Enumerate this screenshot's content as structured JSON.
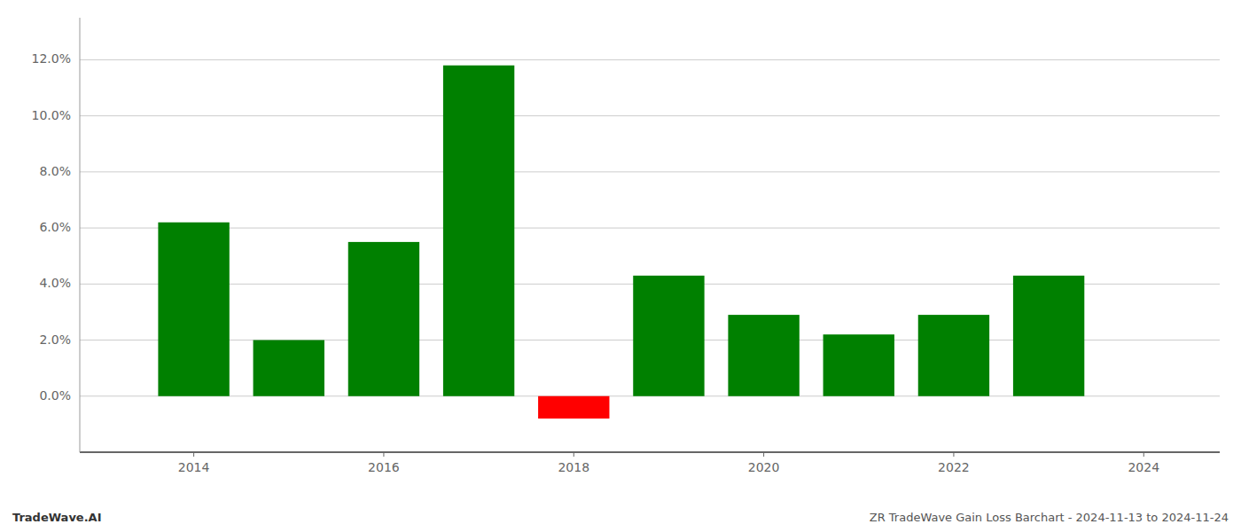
{
  "chart_data": {
    "type": "bar",
    "x": [
      2014,
      2015,
      2016,
      2017,
      2018,
      2019,
      2020,
      2021,
      2022,
      2023
    ],
    "values": [
      0.062,
      0.02,
      0.055,
      0.118,
      -0.008,
      0.043,
      0.029,
      0.022,
      0.029,
      0.043
    ],
    "colors": [
      "#008000",
      "#008000",
      "#008000",
      "#008000",
      "#ff0000",
      "#008000",
      "#008000",
      "#008000",
      "#008000",
      "#008000"
    ],
    "xlim": [
      2012.8,
      2024.8
    ],
    "xticks": [
      2014,
      2016,
      2018,
      2020,
      2022,
      2024
    ],
    "ylim": [
      -0.02,
      0.135
    ],
    "yticks": [
      {
        "value": 0.0,
        "label": "0.0%"
      },
      {
        "value": 0.02,
        "label": "2.0%"
      },
      {
        "value": 0.04,
        "label": "4.0%"
      },
      {
        "value": 0.06,
        "label": "6.0%"
      },
      {
        "value": 0.08,
        "label": "8.0%"
      },
      {
        "value": 0.1,
        "label": "10.0%"
      },
      {
        "value": 0.12,
        "label": "12.0%"
      }
    ],
    "grid": true,
    "annotations": [
      "TradeWave.AI",
      "ZR TradeWave Gain Loss Barchart - 2024-11-13 to 2024-11-24"
    ]
  }
}
